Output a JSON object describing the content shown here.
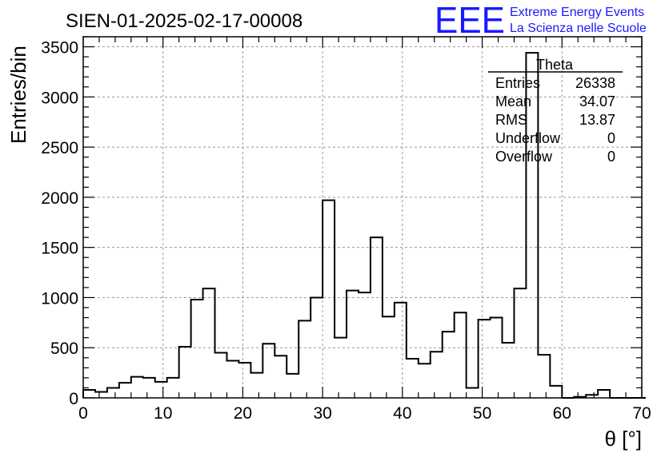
{
  "chart_data": {
    "type": "bar",
    "title": "SIEN-01-2025-02-17-00008",
    "xlabel": "θ [°]",
    "ylabel": "Entries/bin",
    "xlim": [
      0,
      70
    ],
    "ylim": [
      0,
      3600
    ],
    "xticks": [
      0,
      10,
      20,
      30,
      40,
      50,
      60,
      70
    ],
    "yticks": [
      0,
      500,
      1000,
      1500,
      2000,
      2500,
      3000,
      3500
    ],
    "grid": true,
    "bin_width": 1.5,
    "bin_edges_start": 0,
    "values": [
      80,
      60,
      100,
      150,
      210,
      200,
      160,
      200,
      510,
      980,
      1090,
      450,
      370,
      350,
      250,
      540,
      420,
      240,
      770,
      1000,
      1970,
      600,
      1070,
      1050,
      1600,
      810,
      950,
      390,
      340,
      460,
      660,
      850,
      100,
      780,
      800,
      550,
      1090,
      3440,
      430,
      120,
      0,
      10,
      30,
      80,
      0,
      0,
      0
    ]
  },
  "stats_box": {
    "title": "Theta",
    "rows": [
      {
        "label": "Entries",
        "value": "26338"
      },
      {
        "label": "Mean",
        "value": "34.07"
      },
      {
        "label": "RMS",
        "value": "13.87"
      },
      {
        "label": "Underflow",
        "value": "0"
      },
      {
        "label": "Overflow",
        "value": "0"
      }
    ]
  },
  "logo": {
    "mark": "EEE",
    "line1": "Extreme Energy Events",
    "line2": "La Scienza nelle Scuole",
    "color": "#1a1aff"
  }
}
